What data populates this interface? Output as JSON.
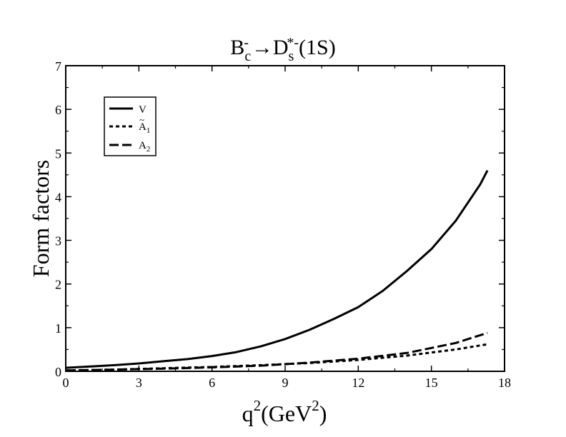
{
  "chart_data": {
    "type": "line",
    "title": {
      "parts": [
        "B",
        "c",
        "-",
        "→",
        "D",
        "s",
        "*-",
        "(1S)"
      ]
    },
    "xlabel": {
      "base": "q",
      "sup": "2",
      "rest": "(GeV",
      "sup2": "2",
      "close": ")"
    },
    "ylabel": "Form factors",
    "xlim": [
      0,
      18
    ],
    "ylim": [
      0,
      7
    ],
    "xticks": [
      "0",
      "3",
      "6",
      "9",
      "12",
      "15",
      "18"
    ],
    "yticks": [
      "0",
      "1",
      "2",
      "3",
      "4",
      "5",
      "6",
      "7"
    ],
    "legend": {
      "position": "top-left",
      "entries": [
        {
          "key": "V",
          "base": "V",
          "sub": "",
          "tilde": false
        },
        {
          "key": "A1",
          "base": "A",
          "sub": "1",
          "tilde": true
        },
        {
          "key": "A2",
          "base": "A",
          "sub": "2",
          "tilde": false
        }
      ]
    },
    "series": [
      {
        "key": "V",
        "style": "solid",
        "x": [
          0,
          1,
          2,
          3,
          4,
          5,
          6,
          7,
          8,
          9,
          10,
          11,
          12,
          13,
          14,
          15,
          16,
          17,
          17.3
        ],
        "y": [
          0.08,
          0.11,
          0.14,
          0.18,
          0.23,
          0.28,
          0.35,
          0.44,
          0.57,
          0.74,
          0.95,
          1.2,
          1.47,
          1.84,
          2.3,
          2.8,
          3.45,
          4.28,
          4.6
        ]
      },
      {
        "key": "A1",
        "style": "dotted",
        "x": [
          0,
          2,
          4,
          6,
          8,
          10,
          12,
          14,
          16,
          17.3
        ],
        "y": [
          0.02,
          0.04,
          0.07,
          0.1,
          0.14,
          0.19,
          0.26,
          0.36,
          0.5,
          0.62
        ]
      },
      {
        "key": "A2",
        "style": "dashed",
        "x": [
          0,
          2,
          4,
          6,
          8,
          10,
          12,
          14,
          16,
          17.3
        ],
        "y": [
          0.02,
          0.04,
          0.06,
          0.09,
          0.13,
          0.2,
          0.29,
          0.42,
          0.65,
          0.88
        ]
      }
    ]
  }
}
